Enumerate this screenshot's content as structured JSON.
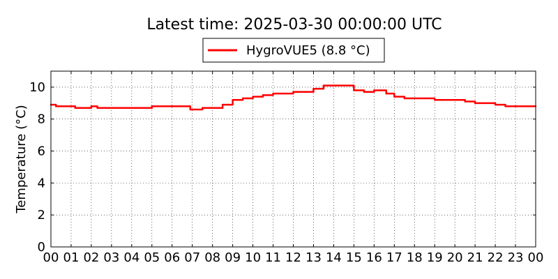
{
  "chart_data": {
    "type": "line",
    "title": "Latest time: 2025-03-30 00:00:00 UTC",
    "xlabel": "",
    "ylabel": "Temperature (°C)",
    "xlim": [
      0,
      24
    ],
    "ylim": [
      0,
      11
    ],
    "x_tick_labels": [
      "00",
      "01",
      "02",
      "03",
      "04",
      "05",
      "06",
      "07",
      "08",
      "09",
      "10",
      "11",
      "12",
      "13",
      "14",
      "15",
      "16",
      "17",
      "18",
      "19",
      "20",
      "21",
      "22",
      "23",
      "00"
    ],
    "y_tick_labels": [
      "0",
      "2",
      "4",
      "6",
      "8",
      "10"
    ],
    "grid": true,
    "legend_position": "top-center",
    "series": [
      {
        "name": "HygroVUE5 (8.8 °C)",
        "color": "#ff0000",
        "x": [
          0,
          0.25,
          1.2,
          1.7,
          2.0,
          2.3,
          3.0,
          4.0,
          5.0,
          6.0,
          6.9,
          7.2,
          7.5,
          8.0,
          8.5,
          9.0,
          9.5,
          10.0,
          10.5,
          11.0,
          11.5,
          12.0,
          12.5,
          13.0,
          13.5,
          14.0,
          14.5,
          15.0,
          15.5,
          16.0,
          16.3,
          16.6,
          17.0,
          17.5,
          18.0,
          18.5,
          19.0,
          20.0,
          20.5,
          21.0,
          21.5,
          22.0,
          22.5,
          23.0,
          23.5,
          24.0
        ],
        "y": [
          8.9,
          8.8,
          8.7,
          8.7,
          8.8,
          8.7,
          8.7,
          8.7,
          8.8,
          8.8,
          8.6,
          8.6,
          8.7,
          8.7,
          8.9,
          9.2,
          9.3,
          9.4,
          9.5,
          9.6,
          9.6,
          9.7,
          9.7,
          9.9,
          10.1,
          10.1,
          10.1,
          9.8,
          9.7,
          9.8,
          9.8,
          9.6,
          9.4,
          9.3,
          9.3,
          9.3,
          9.2,
          9.2,
          9.1,
          9.0,
          9.0,
          8.9,
          8.8,
          8.8,
          8.8,
          8.8
        ]
      }
    ]
  }
}
